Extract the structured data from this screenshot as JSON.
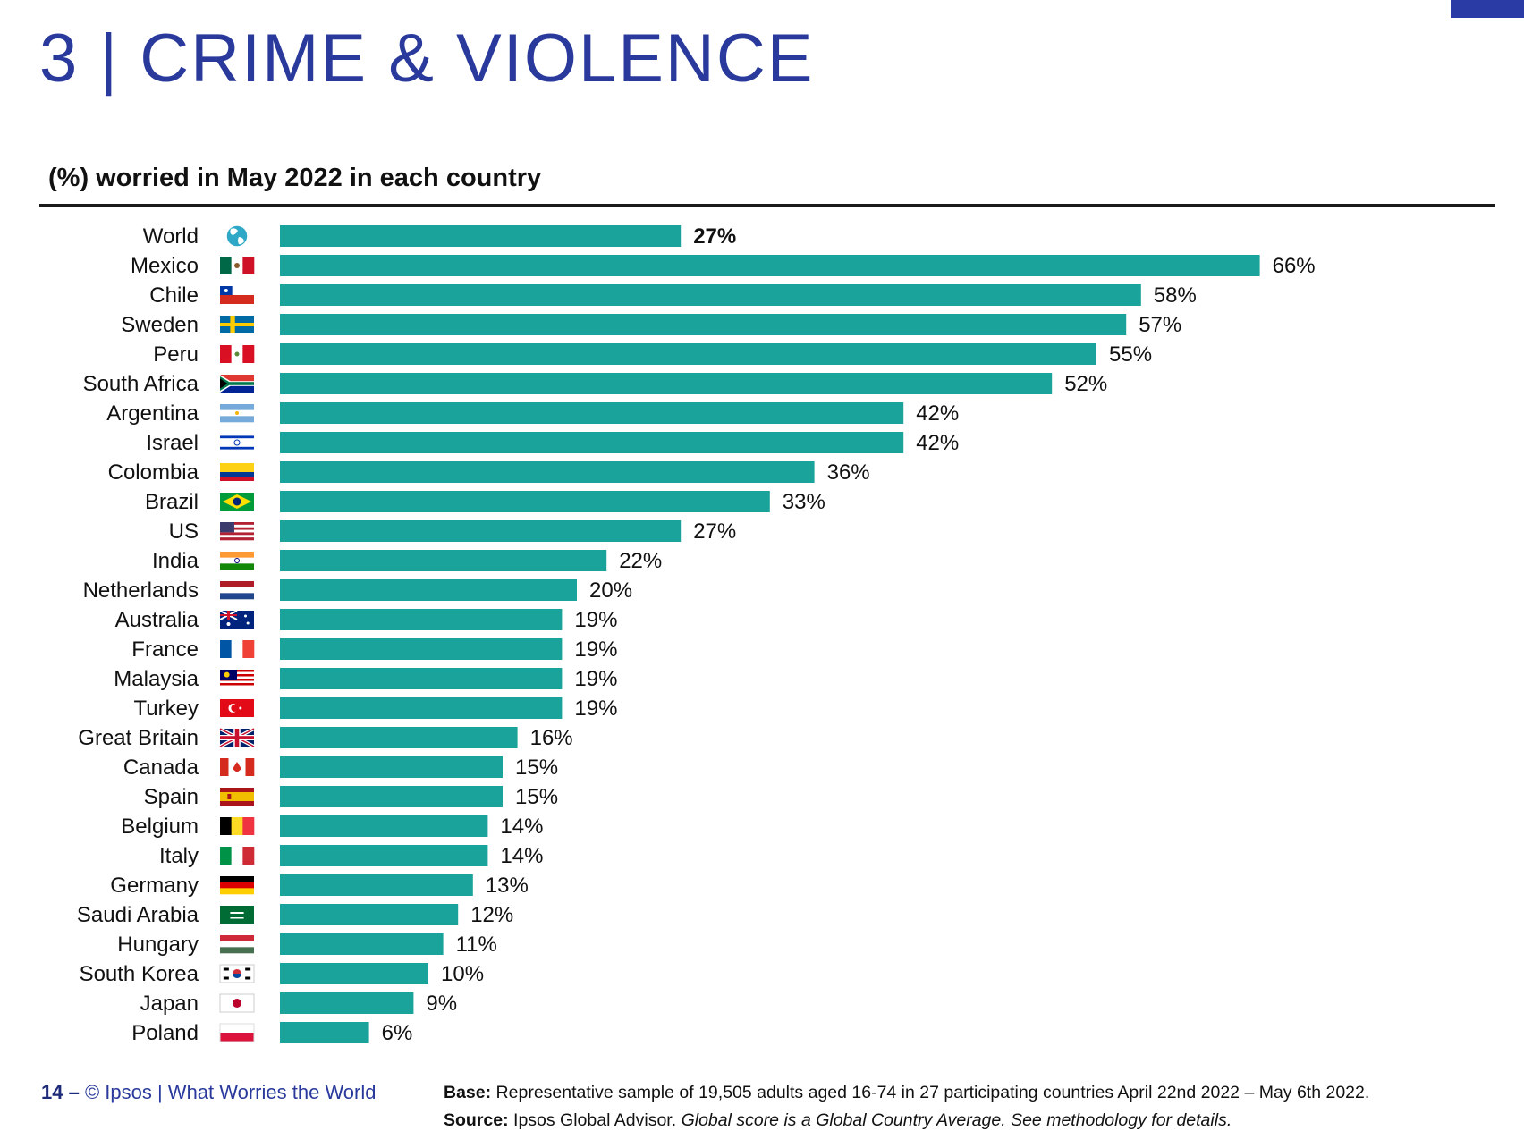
{
  "header": {
    "title": "3 | CRIME & VIOLENCE",
    "subtitle": "(%) worried in May 2022 in each country",
    "accent_color": "#2a3a9c",
    "corner_mark_color": "#2b3ba6"
  },
  "chart_data": {
    "type": "bar",
    "orientation": "horizontal",
    "title": "(%) worried in May 2022 in each country",
    "categories": [
      "World",
      "Mexico",
      "Chile",
      "Sweden",
      "Peru",
      "South Africa",
      "Argentina",
      "Israel",
      "Colombia",
      "Brazil",
      "US",
      "India",
      "Netherlands",
      "Australia",
      "France",
      "Malaysia",
      "Turkey",
      "Great Britain",
      "Canada",
      "Spain",
      "Belgium",
      "Italy",
      "Germany",
      "Saudi Arabia",
      "Hungary",
      "South Korea",
      "Japan",
      "Poland"
    ],
    "values": [
      27,
      66,
      58,
      57,
      55,
      52,
      42,
      42,
      36,
      33,
      27,
      22,
      20,
      19,
      19,
      19,
      19,
      16,
      15,
      15,
      14,
      14,
      13,
      12,
      11,
      10,
      9,
      6
    ],
    "value_labels": [
      "27%",
      "66%",
      "58%",
      "57%",
      "55%",
      "52%",
      "42%",
      "42%",
      "36%",
      "33%",
      "27%",
      "22%",
      "20%",
      "19%",
      "19%",
      "19%",
      "19%",
      "16%",
      "15%",
      "15%",
      "14%",
      "14%",
      "13%",
      "12%",
      "11%",
      "10%",
      "9%",
      "6%"
    ],
    "highlight": "World",
    "unit": "%",
    "bar_color": "#1aa39a",
    "flag_icons": [
      "globe-icon",
      "flag-mexico-icon",
      "flag-chile-icon",
      "flag-sweden-icon",
      "flag-peru-icon",
      "flag-south-africa-icon",
      "flag-argentina-icon",
      "flag-israel-icon",
      "flag-colombia-icon",
      "flag-brazil-icon",
      "flag-us-icon",
      "flag-india-icon",
      "flag-netherlands-icon",
      "flag-australia-icon",
      "flag-france-icon",
      "flag-malaysia-icon",
      "flag-turkey-icon",
      "flag-great-britain-icon",
      "flag-canada-icon",
      "flag-spain-icon",
      "flag-belgium-icon",
      "flag-italy-icon",
      "flag-germany-icon",
      "flag-saudi-arabia-icon",
      "flag-hungary-icon",
      "flag-south-korea-icon",
      "flag-japan-icon",
      "flag-poland-icon"
    ],
    "grid": false,
    "legend": "none"
  },
  "footer": {
    "page_number": "14 –",
    "credit": "© Ipsos | What Worries the World",
    "base_label": "Base:",
    "base_text": "Representative sample of 19,505 adults aged 16-74 in 27 participating countries April 22nd 2022 – May 6th 2022.",
    "source_label": "Source:",
    "source_text": "Ipsos Global Advisor.",
    "source_note": "Global score is a Global Country Average. See methodology for details."
  }
}
